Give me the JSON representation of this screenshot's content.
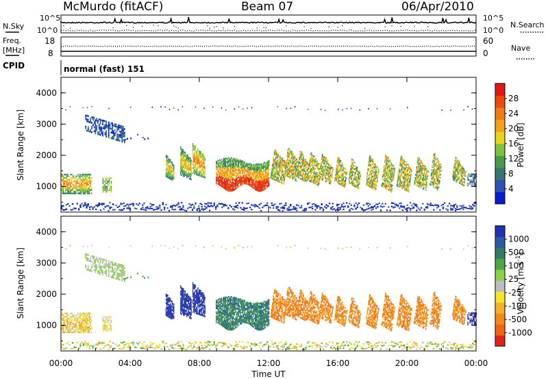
{
  "header": {
    "station": "McMurdo (fitACF)",
    "beam": "Beam 07",
    "date": "06/Apr/2010"
  },
  "strips": {
    "nsky_label": "N.Sky",
    "nsearch_label": "N.Search",
    "nsky_ticks": [
      "10^5",
      "10^0"
    ],
    "nsearch_ticks": [
      "10^5",
      "10^0"
    ],
    "freq_label_1": "Freq.",
    "freq_label_2": "[MHz]",
    "freq_ticks": [
      "18",
      "8"
    ],
    "nave_label": "Nave",
    "nave_ticks": [
      "60",
      "0"
    ],
    "cpid_label": "CPID",
    "cpid_text": "normal (fast) 151"
  },
  "chart_data": [
    {
      "type": "heatmap",
      "title": "",
      "ylabel": "Slant Range [km]",
      "xlabel": "",
      "ylim": [
        180,
        4500
      ],
      "y_ticks": [
        "1000",
        "2000",
        "3000",
        "4000"
      ],
      "x_range_hours": [
        0,
        24
      ],
      "colorbar": {
        "label": "Power [dB]",
        "ticks": [
          "4",
          "8",
          "12",
          "16",
          "20",
          "24",
          "28"
        ],
        "colors": [
          "#0a1cd2",
          "#2c52b4",
          "#36786c",
          "#479c4c",
          "#7ec240",
          "#e9d31c",
          "#f4a21a",
          "#f07b14",
          "#ec4a10",
          "#e01a12"
        ]
      },
      "echo_regions": [
        {
          "t_start": 0.0,
          "t_end": 1.7,
          "range_low": 800,
          "range_high": 1400,
          "typical": "8-20 dB"
        },
        {
          "t_start": 1.4,
          "t_end": 3.6,
          "range_low": 2700,
          "range_high": 3300,
          "typical": "4-10 dB"
        },
        {
          "t_start": 6.0,
          "t_end": 8.5,
          "range_low": 1000,
          "range_high": 2200,
          "typical": "8-20 dB"
        },
        {
          "t_start": 9.0,
          "t_end": 12.0,
          "range_low": 900,
          "range_high": 1800,
          "typical": "16-28 dB"
        },
        {
          "t_start": 12.0,
          "t_end": 23.4,
          "range_low": 800,
          "range_high": 2300,
          "typical": "8-24 dB"
        },
        {
          "t_start": 0.0,
          "t_end": 24.0,
          "range_low": 180,
          "range_high": 400,
          "typical": "4-8 dB"
        }
      ]
    },
    {
      "type": "heatmap",
      "title": "",
      "ylabel": "Slant Range [km]",
      "xlabel": "Time UT",
      "ylim": [
        180,
        4500
      ],
      "y_ticks": [
        "1000",
        "2000",
        "3000",
        "4000"
      ],
      "x_ticks": [
        "00:00",
        "04:00",
        "08:00",
        "12:00",
        "16:00",
        "20:00",
        "00:00"
      ],
      "x_range_hours": [
        0,
        24
      ],
      "colorbar": {
        "label": "Velocity [m s^-1]",
        "ticks": [
          "1000",
          "500",
          "100",
          "25",
          "-25",
          "-100",
          "-500",
          "-1000"
        ],
        "colors": [
          "#2232b0",
          "#2c5aa4",
          "#2f7e64",
          "#4ea644",
          "#8cd04c",
          "#bdbdbd",
          "#f7e42a",
          "#f2b22c",
          "#f08a18",
          "#ee6514",
          "#e22418"
        ]
      },
      "echo_regions": [
        {
          "t_start": 0.0,
          "t_end": 1.7,
          "range_low": 800,
          "range_high": 1400,
          "typical": "-25 to -100"
        },
        {
          "t_start": 1.4,
          "t_end": 3.6,
          "range_low": 2700,
          "range_high": 3300,
          "typical": "-25 to 25"
        },
        {
          "t_start": 6.0,
          "t_end": 8.5,
          "range_low": 1000,
          "range_high": 2200,
          "typical": "500 to 1000"
        },
        {
          "t_start": 9.0,
          "t_end": 12.0,
          "range_low": 900,
          "range_high": 1800,
          "typical": "100 to 500"
        },
        {
          "t_start": 12.0,
          "t_end": 23.4,
          "range_low": 800,
          "range_high": 2300,
          "typical": "-100 to -500"
        }
      ]
    }
  ]
}
